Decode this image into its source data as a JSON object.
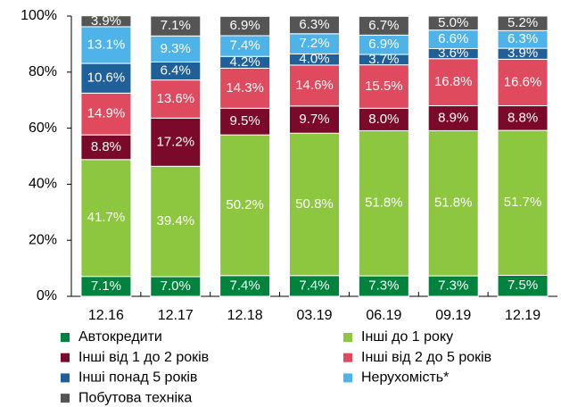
{
  "chart_data": {
    "type": "bar",
    "stacked": true,
    "categories": [
      "12.16",
      "12.17",
      "12.18",
      "03.19",
      "06.19",
      "09.19",
      "12.19"
    ],
    "ylim": [
      0,
      100
    ],
    "yticks": [
      {
        "value": 0,
        "label": "0%"
      },
      {
        "value": 20,
        "label": "20%"
      },
      {
        "value": 40,
        "label": "40%"
      },
      {
        "value": 60,
        "label": "60%"
      },
      {
        "value": 80,
        "label": "80%"
      },
      {
        "value": 100,
        "label": "100%"
      }
    ],
    "series": [
      {
        "name": "Автокредити",
        "color": "#00843d",
        "values": [
          7.1,
          7.0,
          7.4,
          7.4,
          7.3,
          7.3,
          7.5
        ],
        "value_labels": [
          "7.1%",
          "7.0%",
          "7.4%",
          "7.4%",
          "7.3%",
          "7.3%",
          "7.5%"
        ]
      },
      {
        "name": "Інші до 1 року",
        "color": "#8dc63f",
        "values": [
          41.7,
          39.4,
          50.2,
          50.8,
          51.8,
          51.8,
          51.7
        ],
        "value_labels": [
          "41.7%",
          "39.4%",
          "50.2%",
          "50.8%",
          "51.8%",
          "51.8%",
          "51.7%"
        ]
      },
      {
        "name": "Інші від 1 до 2 років",
        "color": "#7b0a2a",
        "values": [
          8.8,
          17.2,
          9.5,
          9.7,
          8.0,
          8.9,
          8.8
        ],
        "value_labels": [
          "8.8%",
          "17.2%",
          "9.5%",
          "9.7%",
          "8.0%",
          "8.9%",
          "8.8%"
        ]
      },
      {
        "name": "Інші від 2 до 5 років",
        "color": "#e04a5f",
        "values": [
          14.9,
          13.6,
          14.3,
          14.6,
          15.5,
          16.8,
          16.6
        ],
        "value_labels": [
          "14.9%",
          "13.6%",
          "14.3%",
          "14.6%",
          "15.5%",
          "16.8%",
          "16.6%"
        ]
      },
      {
        "name": "Інші понад 5 років",
        "color": "#1f5f9a",
        "values": [
          10.6,
          6.4,
          4.2,
          4.0,
          3.7,
          3.6,
          3.9
        ],
        "value_labels": [
          "10.6%",
          "6.4%",
          "4.2%",
          "4.0%",
          "3.7%",
          "3.6%",
          "3.9%"
        ]
      },
      {
        "name": "Нерухомість*",
        "color": "#4eb3e8",
        "values": [
          13.1,
          9.3,
          7.4,
          7.2,
          6.9,
          6.6,
          6.3
        ],
        "value_labels": [
          "13.1%",
          "9.3%",
          "7.4%",
          "7.2%",
          "6.9%",
          "6.6%",
          "6.3%"
        ]
      },
      {
        "name": "Побутова техніка",
        "color": "#555555",
        "values": [
          3.9,
          7.1,
          6.9,
          6.3,
          6.7,
          5.0,
          5.2
        ],
        "value_labels": [
          "3.9%",
          "7.1%",
          "6.9%",
          "6.3%",
          "6.7%",
          "5.0%",
          "5.2%"
        ]
      }
    ]
  }
}
